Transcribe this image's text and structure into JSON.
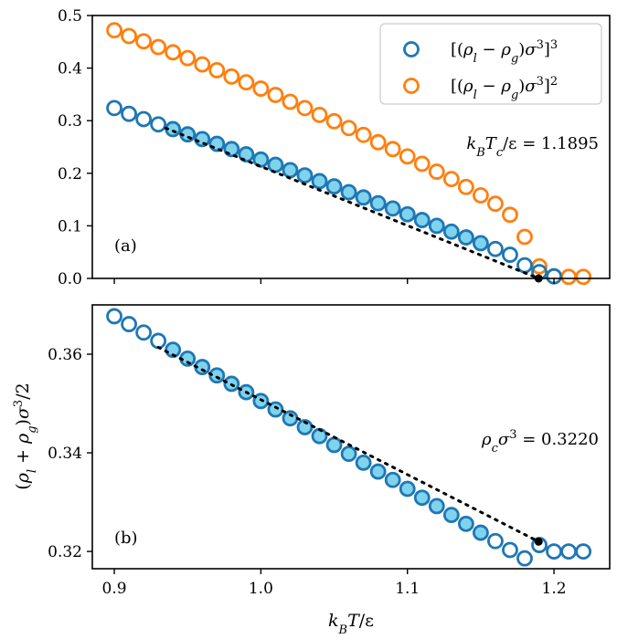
{
  "chart_data": [
    {
      "type": "scatter",
      "panel": "a",
      "panel_label": "(a)",
      "xlim": [
        0.885,
        1.238
      ],
      "ylim": [
        0.0,
        0.5
      ],
      "yticks": [
        0.0,
        0.1,
        0.2,
        0.3,
        0.4,
        0.5
      ],
      "ytick_labels": [
        "0.0",
        "0.1",
        "0.2",
        "0.3",
        "0.4",
        "0.5"
      ],
      "xticks": [
        0.9,
        1.0,
        1.1,
        1.2
      ],
      "annotation": "k_BT_c/ε = 1.1895",
      "legend_position": "top-right",
      "series": [
        {
          "name": "[(ρ_l − ρ_g)σ³]³",
          "color": "#1f77b4",
          "x": [
            0.9,
            0.91,
            0.92,
            0.93,
            0.94,
            0.95,
            0.96,
            0.97,
            0.98,
            0.99,
            1.0,
            1.01,
            1.02,
            1.03,
            1.04,
            1.05,
            1.06,
            1.07,
            1.08,
            1.09,
            1.1,
            1.11,
            1.12,
            1.13,
            1.14,
            1.15,
            1.16,
            1.17,
            1.18,
            1.19,
            1.2
          ],
          "y": [
            0.324,
            0.313,
            0.303,
            0.293,
            0.284,
            0.274,
            0.265,
            0.256,
            0.246,
            0.236,
            0.226,
            0.216,
            0.206,
            0.196,
            0.185,
            0.175,
            0.164,
            0.154,
            0.143,
            0.133,
            0.122,
            0.111,
            0.1,
            0.089,
            0.078,
            0.067,
            0.056,
            0.045,
            0.025,
            0.012,
            0.004
          ],
          "filled_from_index": 4,
          "filled_to_index": 25
        },
        {
          "name": "[(ρ_l − ρ_g)σ³]²",
          "color": "#ff7f0e",
          "x": [
            0.9,
            0.91,
            0.92,
            0.93,
            0.94,
            0.95,
            0.96,
            0.97,
            0.98,
            0.99,
            1.0,
            1.01,
            1.02,
            1.03,
            1.04,
            1.05,
            1.06,
            1.07,
            1.08,
            1.09,
            1.1,
            1.11,
            1.12,
            1.13,
            1.14,
            1.15,
            1.16,
            1.17,
            1.18,
            1.19,
            1.2,
            1.21,
            1.22
          ],
          "y": [
            0.472,
            0.461,
            0.451,
            0.44,
            0.43,
            0.419,
            0.407,
            0.396,
            0.384,
            0.373,
            0.361,
            0.349,
            0.336,
            0.324,
            0.311,
            0.299,
            0.286,
            0.273,
            0.259,
            0.246,
            0.232,
            0.218,
            0.203,
            0.189,
            0.174,
            0.158,
            0.142,
            0.121,
            0.079,
            0.023,
            0.004,
            0.003,
            0.003
          ]
        }
      ],
      "fit_line": {
        "x": [
          0.935,
          1.1895
        ],
        "y": [
          0.286,
          0.0
        ]
      },
      "critical_point": {
        "x": 1.1895,
        "y": 0.0
      }
    },
    {
      "type": "scatter",
      "panel": "b",
      "panel_label": "(b)",
      "xlim": [
        0.885,
        1.238
      ],
      "ylim": [
        0.3165,
        0.37
      ],
      "yticks": [
        0.32,
        0.34,
        0.36
      ],
      "ytick_labels": [
        "0.32",
        "0.34",
        "0.36"
      ],
      "xticks": [
        0.9,
        1.0,
        1.1,
        1.2
      ],
      "xtick_labels": [
        "0.9",
        "1.0",
        "1.1",
        "1.2"
      ],
      "xlabel": "k_BT/ε",
      "ylabel": "(ρ_l + ρ_g)σ³/2",
      "annotation": "ρ_cσ³ = 0.3220",
      "series": [
        {
          "name": "(ρ_l + ρ_g)σ³/2",
          "color": "#1f77b4",
          "x": [
            0.9,
            0.91,
            0.92,
            0.93,
            0.94,
            0.95,
            0.96,
            0.97,
            0.98,
            0.99,
            1.0,
            1.01,
            1.02,
            1.03,
            1.04,
            1.05,
            1.06,
            1.07,
            1.08,
            1.09,
            1.1,
            1.11,
            1.12,
            1.13,
            1.14,
            1.15,
            1.16,
            1.17,
            1.18,
            1.19,
            1.2,
            1.21,
            1.22
          ],
          "y": [
            0.3677,
            0.3661,
            0.3644,
            0.3627,
            0.3609,
            0.3591,
            0.3574,
            0.3557,
            0.354,
            0.3523,
            0.3505,
            0.3488,
            0.347,
            0.3452,
            0.3434,
            0.3416,
            0.3398,
            0.338,
            0.3362,
            0.3345,
            0.3327,
            0.3309,
            0.3292,
            0.3274,
            0.3256,
            0.3238,
            0.3221,
            0.3203,
            0.3186,
            0.3213,
            0.32,
            0.32,
            0.32
          ],
          "filled_from_index": 4,
          "filled_to_index": 25
        }
      ],
      "fit_line": {
        "x": [
          0.93,
          1.1895
        ],
        "y": [
          0.3614,
          0.322
        ]
      },
      "critical_point": {
        "x": 1.1895,
        "y": 0.322
      }
    }
  ]
}
